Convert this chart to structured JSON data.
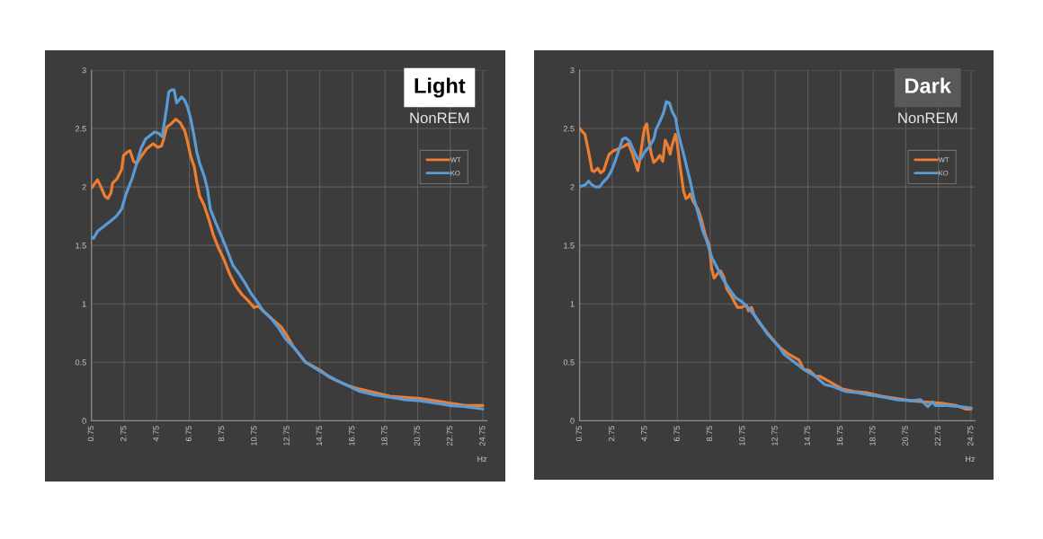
{
  "chart_data": [
    {
      "type": "line",
      "title": "Light",
      "subtitle": "NonREM",
      "xlabel": "Hz",
      "xlim": [
        0.75,
        25
      ],
      "xticks": [
        0.75,
        2.75,
        4.75,
        6.75,
        8.75,
        10.75,
        12.75,
        14.75,
        16.75,
        18.75,
        20.75,
        22.75,
        24.75
      ],
      "ylim": [
        0,
        3
      ],
      "yticks": [
        0,
        0.5,
        1,
        1.5,
        2,
        2.5,
        3
      ],
      "grid": true,
      "legend": "top right",
      "series": [
        {
          "name": "WT",
          "color": "#ed7d31",
          "x": [
            0.75,
            1.12,
            1.3,
            1.58,
            1.76,
            1.95,
            2.04,
            2.32,
            2.6,
            2.72,
            2.96,
            3.11,
            3.33,
            3.52,
            3.79,
            4.16,
            4.53,
            4.81,
            5.05,
            5.18,
            5.36,
            5.64,
            5.92,
            6.19,
            6.47,
            6.65,
            6.84,
            7.06,
            7.21,
            7.39,
            7.67,
            7.95,
            8.22,
            8.5,
            8.87,
            9.24,
            9.61,
            9.98,
            10.34,
            10.71,
            10.99,
            11.36,
            11.91,
            12.4,
            12.77,
            13.14,
            13.88,
            14.8,
            15.36,
            16.47,
            17.2,
            18.13,
            19.05,
            19.97,
            20.9,
            21.82,
            22.75,
            23.66,
            24.75
          ],
          "values": [
            1.99,
            2.06,
            2.01,
            1.92,
            1.9,
            1.95,
            2.03,
            2.07,
            2.15,
            2.27,
            2.3,
            2.31,
            2.22,
            2.2,
            2.26,
            2.33,
            2.37,
            2.34,
            2.35,
            2.41,
            2.51,
            2.54,
            2.58,
            2.55,
            2.48,
            2.38,
            2.26,
            2.17,
            2.04,
            1.92,
            1.84,
            1.72,
            1.59,
            1.49,
            1.38,
            1.25,
            1.15,
            1.08,
            1.03,
            0.97,
            0.98,
            0.93,
            0.86,
            0.8,
            0.72,
            0.63,
            0.5,
            0.43,
            0.37,
            0.3,
            0.27,
            0.24,
            0.21,
            0.2,
            0.19,
            0.17,
            0.15,
            0.13,
            0.13
          ]
        },
        {
          "name": "KO",
          "color": "#5b9bd5",
          "x": [
            0.75,
            0.88,
            1.12,
            1.58,
            1.95,
            2.28,
            2.6,
            2.87,
            3.24,
            3.52,
            3.79,
            4.07,
            4.35,
            4.62,
            4.86,
            5.09,
            5.23,
            5.36,
            5.49,
            5.64,
            5.82,
            5.97,
            6.1,
            6.28,
            6.47,
            6.65,
            6.84,
            7.02,
            7.21,
            7.39,
            7.67,
            7.85,
            8.04,
            8.41,
            8.78,
            9.15,
            9.42,
            9.79,
            10.16,
            10.53,
            10.9,
            11.27,
            11.73,
            12.19,
            12.65,
            13.14,
            13.88,
            14.8,
            15.7,
            16.47,
            17.2,
            18.13,
            19.05,
            19.97,
            20.9,
            21.82,
            22.75,
            23.66,
            24.75
          ],
          "values": [
            1.57,
            1.56,
            1.62,
            1.67,
            1.71,
            1.75,
            1.81,
            1.94,
            2.07,
            2.2,
            2.33,
            2.41,
            2.44,
            2.47,
            2.46,
            2.43,
            2.56,
            2.68,
            2.81,
            2.83,
            2.83,
            2.72,
            2.74,
            2.77,
            2.74,
            2.68,
            2.58,
            2.45,
            2.3,
            2.2,
            2.09,
            1.99,
            1.81,
            1.68,
            1.56,
            1.43,
            1.33,
            1.26,
            1.18,
            1.09,
            1.02,
            0.94,
            0.88,
            0.8,
            0.7,
            0.63,
            0.5,
            0.42,
            0.35,
            0.3,
            0.25,
            0.22,
            0.2,
            0.18,
            0.17,
            0.15,
            0.13,
            0.12,
            0.1
          ]
        }
      ]
    },
    {
      "type": "line",
      "title": "Dark",
      "subtitle": "NonREM",
      "xlabel": "Hz",
      "xlim": [
        0.75,
        25
      ],
      "xticks": [
        0.75,
        2.75,
        4.75,
        6.75,
        8.75,
        10.75,
        12.75,
        14.75,
        16.75,
        18.75,
        20.75,
        22.75,
        24.75
      ],
      "ylim": [
        0,
        3
      ],
      "yticks": [
        0,
        0.5,
        1,
        1.5,
        2,
        2.5,
        3
      ],
      "grid": true,
      "legend": "top right",
      "series": [
        {
          "name": "WT",
          "color": "#ed7d31",
          "x": [
            0.75,
            1.08,
            1.23,
            1.36,
            1.51,
            1.64,
            1.86,
            2.04,
            2.23,
            2.41,
            2.56,
            2.84,
            3.21,
            3.49,
            3.73,
            3.95,
            4.13,
            4.32,
            4.45,
            4.63,
            4.74,
            4.87,
            5.0,
            5.15,
            5.3,
            5.52,
            5.67,
            5.85,
            6.0,
            6.17,
            6.3,
            6.41,
            6.54,
            6.63,
            6.74,
            6.85,
            7.0,
            7.13,
            7.27,
            7.4,
            7.52,
            7.74,
            8.01,
            8.2,
            8.48,
            8.7,
            8.85,
            9.0,
            9.22,
            9.4,
            9.59,
            9.77,
            10.05,
            10.23,
            10.42,
            10.69,
            10.97,
            11.1,
            11.29,
            11.47,
            11.71,
            11.99,
            12.27,
            13.0,
            13.56,
            14.2,
            14.48,
            14.85,
            15.21,
            15.49,
            16.13,
            16.87,
            17.6,
            18.34,
            19.26,
            20.18,
            21.1,
            22.0,
            22.93,
            23.85,
            24.4,
            24.75
          ],
          "values": [
            2.5,
            2.45,
            2.35,
            2.26,
            2.14,
            2.13,
            2.16,
            2.12,
            2.14,
            2.22,
            2.28,
            2.31,
            2.33,
            2.35,
            2.37,
            2.3,
            2.22,
            2.14,
            2.24,
            2.42,
            2.51,
            2.54,
            2.4,
            2.28,
            2.21,
            2.24,
            2.27,
            2.22,
            2.4,
            2.35,
            2.28,
            2.35,
            2.41,
            2.45,
            2.37,
            2.24,
            2.09,
            1.96,
            1.9,
            1.91,
            1.94,
            1.87,
            1.81,
            1.73,
            1.58,
            1.5,
            1.3,
            1.22,
            1.26,
            1.28,
            1.23,
            1.13,
            1.07,
            1.02,
            0.97,
            0.97,
            0.99,
            0.94,
            0.97,
            0.9,
            0.85,
            0.8,
            0.75,
            0.63,
            0.57,
            0.52,
            0.44,
            0.43,
            0.38,
            0.38,
            0.33,
            0.27,
            0.25,
            0.24,
            0.21,
            0.19,
            0.17,
            0.16,
            0.15,
            0.13,
            0.1,
            0.1
          ]
        },
        {
          "name": "KO",
          "color": "#5b9bd5",
          "x": [
            0.75,
            1.12,
            1.3,
            1.49,
            1.73,
            1.97,
            2.19,
            2.47,
            2.71,
            2.93,
            3.17,
            3.39,
            3.58,
            3.82,
            4.04,
            4.32,
            4.5,
            4.74,
            5.06,
            5.3,
            5.43,
            5.67,
            5.89,
            6.07,
            6.26,
            6.41,
            6.63,
            6.78,
            6.96,
            7.15,
            7.37,
            7.55,
            7.74,
            8.01,
            8.29,
            8.57,
            8.85,
            9.22,
            9.59,
            9.96,
            10.33,
            10.69,
            11.06,
            11.43,
            11.8,
            12.27,
            13.0,
            13.28,
            13.74,
            14.48,
            15.21,
            15.77,
            16.32,
            17.05,
            17.79,
            18.52,
            19.44,
            20.18,
            21.1,
            21.65,
            22.1,
            22.38,
            22.57,
            23.3,
            24.04,
            24.75
          ],
          "values": [
            2.0,
            2.02,
            2.05,
            2.02,
            2.0,
            2.0,
            2.04,
            2.08,
            2.14,
            2.22,
            2.32,
            2.41,
            2.42,
            2.39,
            2.32,
            2.24,
            2.24,
            2.3,
            2.35,
            2.41,
            2.49,
            2.56,
            2.63,
            2.73,
            2.72,
            2.65,
            2.59,
            2.47,
            2.37,
            2.27,
            2.14,
            2.04,
            1.91,
            1.78,
            1.63,
            1.53,
            1.4,
            1.3,
            1.2,
            1.12,
            1.05,
            1.02,
            0.97,
            0.91,
            0.84,
            0.74,
            0.63,
            0.57,
            0.52,
            0.44,
            0.38,
            0.31,
            0.29,
            0.25,
            0.24,
            0.22,
            0.2,
            0.18,
            0.17,
            0.18,
            0.12,
            0.16,
            0.13,
            0.13,
            0.12,
            0.11
          ]
        }
      ]
    }
  ]
}
